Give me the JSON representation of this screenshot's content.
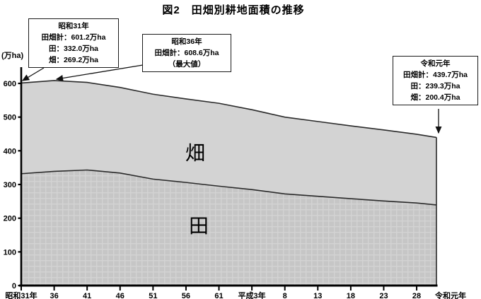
{
  "title": "図2　田畑別耕地面積の推移",
  "y_axis": {
    "unit_label": "(万ha)",
    "ticks": [
      0,
      100,
      200,
      300,
      400,
      500,
      600
    ],
    "max": 600
  },
  "x_axis": {
    "tick_labels": [
      "昭和31年",
      "36",
      "41",
      "46",
      "51",
      "56",
      "61",
      "平成3年",
      "8",
      "13",
      "18",
      "23",
      "28",
      "令和元年"
    ],
    "tick_years": [
      1956,
      1961,
      1966,
      1971,
      1976,
      1981,
      1986,
      1991,
      1996,
      2001,
      2006,
      2011,
      2016,
      2019
    ],
    "start_year": 1956,
    "end_year": 2019
  },
  "chart_data": {
    "type": "area",
    "stacked": true,
    "title": "図2　田畑別耕地面積の推移",
    "ylabel": "万ha",
    "ylim": [
      0,
      600
    ],
    "grid": false,
    "x_years": [
      1956,
      1961,
      1966,
      1971,
      1976,
      1981,
      1986,
      1991,
      1996,
      2001,
      2006,
      2011,
      2016,
      2019
    ],
    "series": [
      {
        "name": "田",
        "values": [
          332.0,
          339.0,
          343.0,
          334.0,
          316.0,
          306.0,
          295.0,
          285.0,
          272.0,
          265.0,
          258.0,
          251.0,
          245.0,
          239.3
        ]
      },
      {
        "name": "畑",
        "values": [
          269.2,
          269.6,
          260.0,
          254.0,
          252.0,
          248.0,
          246.0,
          237.0,
          228.0,
          222.0,
          216.0,
          211.0,
          204.0,
          200.4
        ]
      },
      {
        "name": "田畑計",
        "values": [
          601.2,
          608.6,
          603.0,
          588.0,
          568.0,
          554.0,
          541.0,
          522.0,
          500.0,
          487.0,
          474.0,
          462.0,
          449.0,
          439.7
        ]
      }
    ],
    "area_labels": {
      "upper": "畑",
      "lower": "田"
    }
  },
  "annotations": {
    "showa31": {
      "lines": [
        "昭和31年",
        "田畑計：601.2万ha",
        "田：332.0万ha",
        "畑：269.2万ha"
      ]
    },
    "showa36": {
      "lines": [
        "昭和36年",
        "田畑計：608.6万ha",
        "（最大値）"
      ]
    },
    "reiwa1": {
      "lines": [
        "令和元年",
        "田畑計：439.7万ha",
        "田：239.3万ha",
        "畑：200.4万ha"
      ]
    }
  },
  "colors": {
    "upper_area_fill": "#d3d3d3",
    "lower_area_base": "#c6c6c6",
    "lower_area_grid": "#d3d3d3",
    "boundary_line": "#2a2a2a",
    "axis": "#000000",
    "text": "#000000"
  }
}
